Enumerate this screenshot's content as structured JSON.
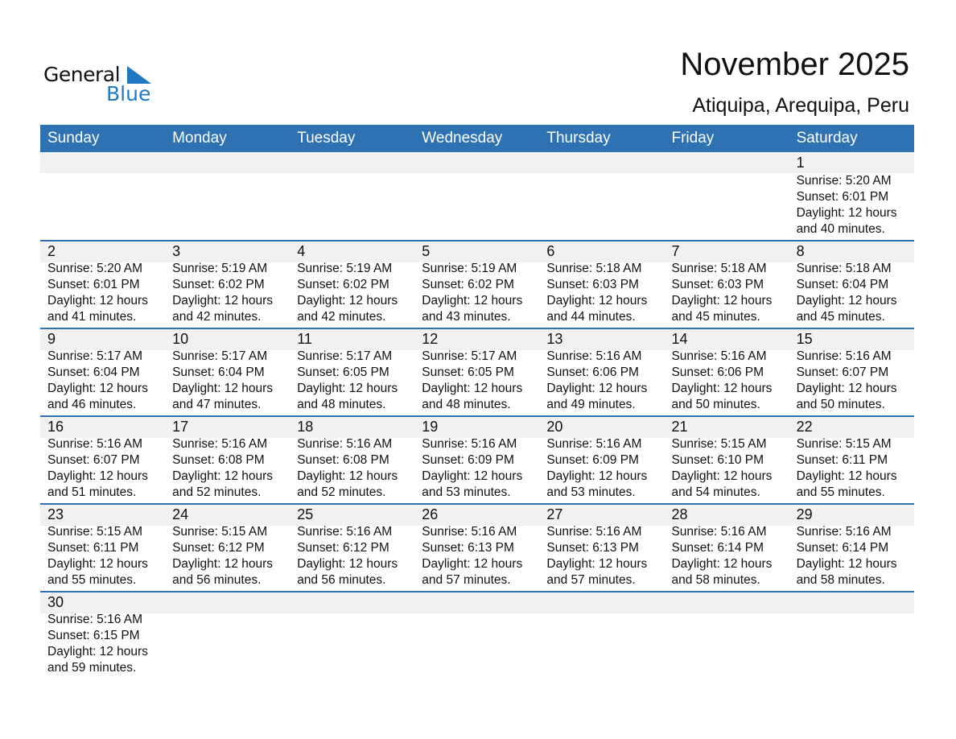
{
  "logo": {
    "line1": "General",
    "line2": "Blue",
    "color": "#1f78c1"
  },
  "title": "November 2025",
  "location": "Atiquipa, Arequipa, Peru",
  "header_color": "#2e72b4",
  "weekdays": [
    "Sunday",
    "Monday",
    "Tuesday",
    "Wednesday",
    "Thursday",
    "Friday",
    "Saturday"
  ],
  "first_weekday_index": 6,
  "days": [
    {
      "day": "1",
      "sunrise": "Sunrise: 5:20 AM",
      "sunset": "Sunset: 6:01 PM",
      "daylight": "Daylight: 12 hours",
      "minutes": "and 40 minutes."
    },
    {
      "day": "2",
      "sunrise": "Sunrise: 5:20 AM",
      "sunset": "Sunset: 6:01 PM",
      "daylight": "Daylight: 12 hours",
      "minutes": "and 41 minutes."
    },
    {
      "day": "3",
      "sunrise": "Sunrise: 5:19 AM",
      "sunset": "Sunset: 6:02 PM",
      "daylight": "Daylight: 12 hours",
      "minutes": "and 42 minutes."
    },
    {
      "day": "4",
      "sunrise": "Sunrise: 5:19 AM",
      "sunset": "Sunset: 6:02 PM",
      "daylight": "Daylight: 12 hours",
      "minutes": "and 42 minutes."
    },
    {
      "day": "5",
      "sunrise": "Sunrise: 5:19 AM",
      "sunset": "Sunset: 6:02 PM",
      "daylight": "Daylight: 12 hours",
      "minutes": "and 43 minutes."
    },
    {
      "day": "6",
      "sunrise": "Sunrise: 5:18 AM",
      "sunset": "Sunset: 6:03 PM",
      "daylight": "Daylight: 12 hours",
      "minutes": "and 44 minutes."
    },
    {
      "day": "7",
      "sunrise": "Sunrise: 5:18 AM",
      "sunset": "Sunset: 6:03 PM",
      "daylight": "Daylight: 12 hours",
      "minutes": "and 45 minutes."
    },
    {
      "day": "8",
      "sunrise": "Sunrise: 5:18 AM",
      "sunset": "Sunset: 6:04 PM",
      "daylight": "Daylight: 12 hours",
      "minutes": "and 45 minutes."
    },
    {
      "day": "9",
      "sunrise": "Sunrise: 5:17 AM",
      "sunset": "Sunset: 6:04 PM",
      "daylight": "Daylight: 12 hours",
      "minutes": "and 46 minutes."
    },
    {
      "day": "10",
      "sunrise": "Sunrise: 5:17 AM",
      "sunset": "Sunset: 6:04 PM",
      "daylight": "Daylight: 12 hours",
      "minutes": "and 47 minutes."
    },
    {
      "day": "11",
      "sunrise": "Sunrise: 5:17 AM",
      "sunset": "Sunset: 6:05 PM",
      "daylight": "Daylight: 12 hours",
      "minutes": "and 48 minutes."
    },
    {
      "day": "12",
      "sunrise": "Sunrise: 5:17 AM",
      "sunset": "Sunset: 6:05 PM",
      "daylight": "Daylight: 12 hours",
      "minutes": "and 48 minutes."
    },
    {
      "day": "13",
      "sunrise": "Sunrise: 5:16 AM",
      "sunset": "Sunset: 6:06 PM",
      "daylight": "Daylight: 12 hours",
      "minutes": "and 49 minutes."
    },
    {
      "day": "14",
      "sunrise": "Sunrise: 5:16 AM",
      "sunset": "Sunset: 6:06 PM",
      "daylight": "Daylight: 12 hours",
      "minutes": "and 50 minutes."
    },
    {
      "day": "15",
      "sunrise": "Sunrise: 5:16 AM",
      "sunset": "Sunset: 6:07 PM",
      "daylight": "Daylight: 12 hours",
      "minutes": "and 50 minutes."
    },
    {
      "day": "16",
      "sunrise": "Sunrise: 5:16 AM",
      "sunset": "Sunset: 6:07 PM",
      "daylight": "Daylight: 12 hours",
      "minutes": "and 51 minutes."
    },
    {
      "day": "17",
      "sunrise": "Sunrise: 5:16 AM",
      "sunset": "Sunset: 6:08 PM",
      "daylight": "Daylight: 12 hours",
      "minutes": "and 52 minutes."
    },
    {
      "day": "18",
      "sunrise": "Sunrise: 5:16 AM",
      "sunset": "Sunset: 6:08 PM",
      "daylight": "Daylight: 12 hours",
      "minutes": "and 52 minutes."
    },
    {
      "day": "19",
      "sunrise": "Sunrise: 5:16 AM",
      "sunset": "Sunset: 6:09 PM",
      "daylight": "Daylight: 12 hours",
      "minutes": "and 53 minutes."
    },
    {
      "day": "20",
      "sunrise": "Sunrise: 5:16 AM",
      "sunset": "Sunset: 6:09 PM",
      "daylight": "Daylight: 12 hours",
      "minutes": "and 53 minutes."
    },
    {
      "day": "21",
      "sunrise": "Sunrise: 5:15 AM",
      "sunset": "Sunset: 6:10 PM",
      "daylight": "Daylight: 12 hours",
      "minutes": "and 54 minutes."
    },
    {
      "day": "22",
      "sunrise": "Sunrise: 5:15 AM",
      "sunset": "Sunset: 6:11 PM",
      "daylight": "Daylight: 12 hours",
      "minutes": "and 55 minutes."
    },
    {
      "day": "23",
      "sunrise": "Sunrise: 5:15 AM",
      "sunset": "Sunset: 6:11 PM",
      "daylight": "Daylight: 12 hours",
      "minutes": "and 55 minutes."
    },
    {
      "day": "24",
      "sunrise": "Sunrise: 5:15 AM",
      "sunset": "Sunset: 6:12 PM",
      "daylight": "Daylight: 12 hours",
      "minutes": "and 56 minutes."
    },
    {
      "day": "25",
      "sunrise": "Sunrise: 5:16 AM",
      "sunset": "Sunset: 6:12 PM",
      "daylight": "Daylight: 12 hours",
      "minutes": "and 56 minutes."
    },
    {
      "day": "26",
      "sunrise": "Sunrise: 5:16 AM",
      "sunset": "Sunset: 6:13 PM",
      "daylight": "Daylight: 12 hours",
      "minutes": "and 57 minutes."
    },
    {
      "day": "27",
      "sunrise": "Sunrise: 5:16 AM",
      "sunset": "Sunset: 6:13 PM",
      "daylight": "Daylight: 12 hours",
      "minutes": "and 57 minutes."
    },
    {
      "day": "28",
      "sunrise": "Sunrise: 5:16 AM",
      "sunset": "Sunset: 6:14 PM",
      "daylight": "Daylight: 12 hours",
      "minutes": "and 58 minutes."
    },
    {
      "day": "29",
      "sunrise": "Sunrise: 5:16 AM",
      "sunset": "Sunset: 6:14 PM",
      "daylight": "Daylight: 12 hours",
      "minutes": "and 58 minutes."
    },
    {
      "day": "30",
      "sunrise": "Sunrise: 5:16 AM",
      "sunset": "Sunset: 6:15 PM",
      "daylight": "Daylight: 12 hours",
      "minutes": "and 59 minutes."
    }
  ]
}
